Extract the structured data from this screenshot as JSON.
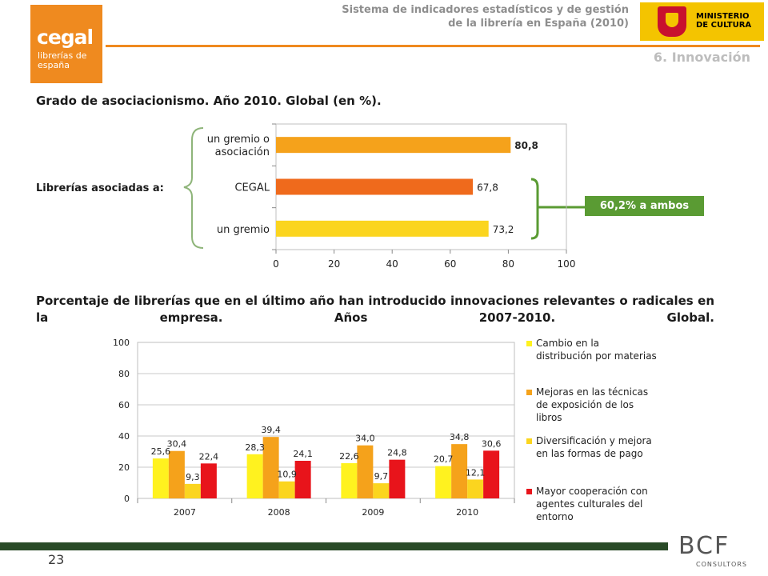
{
  "header": {
    "title_line1": "Sistema de indicadores estadísticos y de gestión",
    "title_line2": "de la librería en España (2010)",
    "section": "6. Innovación",
    "logo_big": "cegal",
    "logo_small": "librerías de españa",
    "ministry_line1": "MINISTERIO",
    "ministry_line2": "DE CULTURA"
  },
  "colors": {
    "orange": "#f5a21b",
    "dark_orange": "#ef6a1c",
    "yellow": "#fbd51f",
    "bright_yellow": "#fff21f",
    "red": "#e8141b",
    "green": "#5a9b33"
  },
  "chart1_heading": "Grado de asociacionismo. Año 2010. Global (en %).",
  "chart1_side_label": "Librerías asociadas a:",
  "callout": "60,2% a ambos",
  "chart2_heading": "Porcentaje de librerías que en el último año han introducido innovaciones relevantes o radicales en la empresa. Años 2007-2010. Global.",
  "chart_data": [
    {
      "type": "bar",
      "orientation": "horizontal",
      "categories": [
        "un gremio o asociación",
        "CEGAL",
        "un gremio"
      ],
      "values": [
        80.8,
        67.8,
        73.2
      ],
      "value_labels": [
        "80,8",
        "67,8",
        "73,2"
      ],
      "bar_colors": [
        "#f5a21b",
        "#ef6a1c",
        "#fbd51f"
      ],
      "xlim": [
        0,
        100
      ],
      "xticks": [
        0,
        20,
        40,
        60,
        80,
        100
      ],
      "grid": false
    },
    {
      "type": "bar",
      "categories": [
        "2007",
        "2008",
        "2009",
        "2010"
      ],
      "series": [
        {
          "name": "Cambio en la distribución por materias",
          "color": "#fff21f",
          "values": [
            25.6,
            28.3,
            22.6,
            20.7
          ],
          "labels": [
            "25,6",
            "28,3",
            "22,6",
            "20,7"
          ]
        },
        {
          "name": "Mejoras en las técnicas de exposición de los libros",
          "color": "#f5a21b",
          "values": [
            30.4,
            39.4,
            34.0,
            34.8
          ],
          "labels": [
            "30,4",
            "39,4",
            "34,0",
            "34,8"
          ]
        },
        {
          "name": "Diversificación y mejora en las formas de pago",
          "color": "#fbd51f",
          "values": [
            9.3,
            10.9,
            9.7,
            12.1
          ],
          "labels": [
            "9,3",
            "10,9",
            "9,7",
            "12,1"
          ]
        },
        {
          "name": "Mayor cooperación con agentes culturales del entorno",
          "color": "#e8141b",
          "values": [
            22.4,
            24.1,
            24.8,
            30.6
          ],
          "labels": [
            "22,4",
            "24,1",
            "24,8",
            "30,6"
          ]
        }
      ],
      "ylim": [
        0,
        100
      ],
      "yticks": [
        0,
        20,
        40,
        60,
        80,
        100
      ],
      "grid": true,
      "legend_position": "right"
    }
  ],
  "footer": {
    "page_number": "23",
    "consultant_logo": "BCF",
    "consultant_sub": "CONSULTORS"
  }
}
